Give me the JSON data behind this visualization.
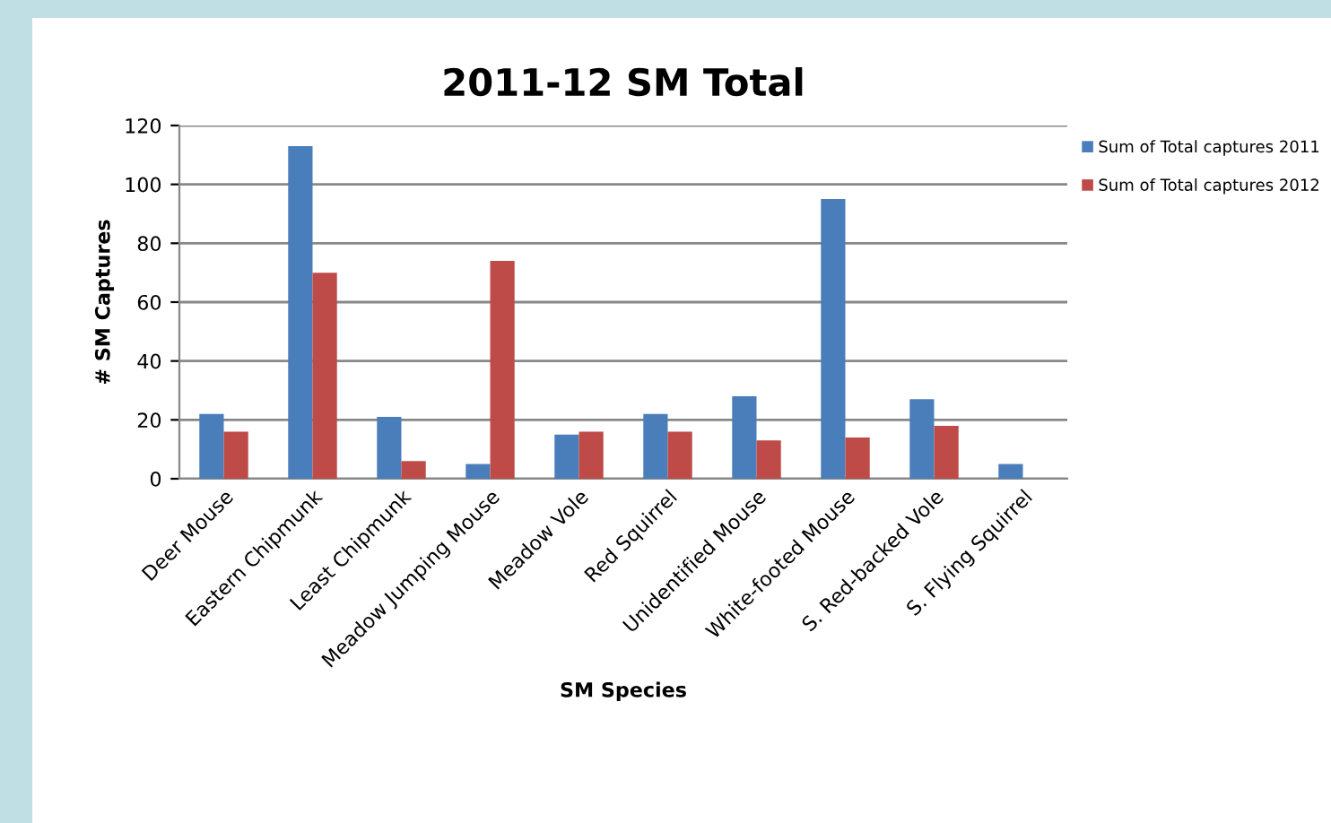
{
  "chart_data": {
    "type": "bar",
    "title": "2011-12 SM Total",
    "xlabel": "SM Species",
    "ylabel": "# SM Captures",
    "categories": [
      "Deer Mouse",
      "Eastern Chipmunk",
      "Least Chipmunk",
      "Meadow Jumping Mouse",
      "Meadow Vole",
      "Red Squirrel",
      "Unidentified Mouse",
      "White-footed Mouse",
      "S. Red-backed Vole",
      "S. Flying Squirrel"
    ],
    "series": [
      {
        "name": "Sum of Total captures 2011",
        "color": "#4a7ebb",
        "values": [
          22,
          113,
          21,
          5,
          15,
          22,
          28,
          95,
          27,
          5
        ]
      },
      {
        "name": "Sum of Total captures 2012",
        "color": "#be4b48",
        "values": [
          16,
          70,
          6,
          74,
          16,
          16,
          13,
          14,
          18,
          null
        ]
      }
    ],
    "ylim": [
      0,
      120
    ],
    "yticks": [
      0,
      20,
      40,
      60,
      80,
      100,
      120
    ],
    "grid": "y",
    "legend": "top right"
  }
}
